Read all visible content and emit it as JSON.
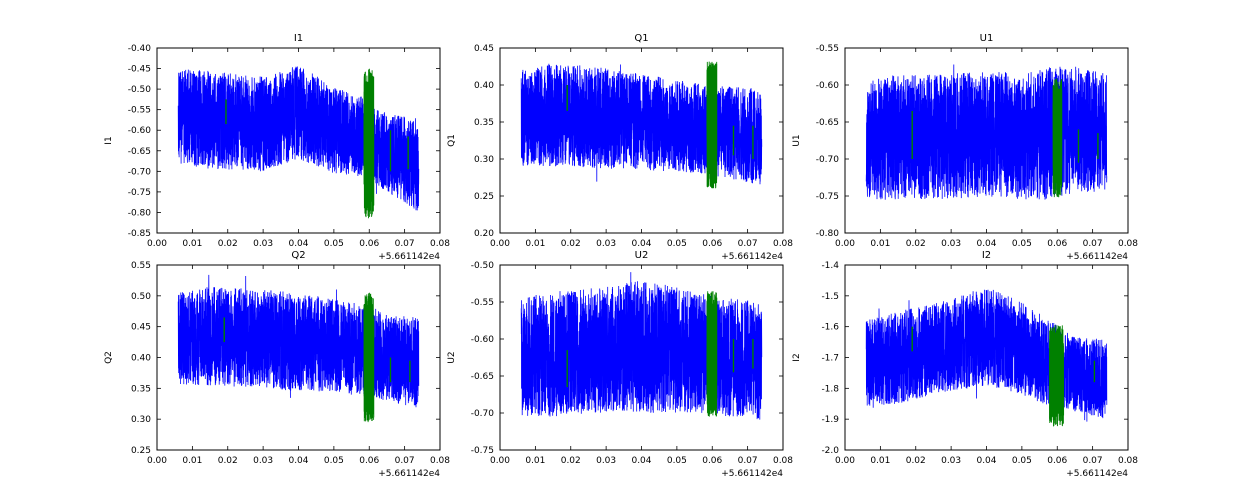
{
  "figure": {
    "background": "#ffffff",
    "axes_color": "#000000",
    "series_color": "#0000ff",
    "highlight_color": "#008000",
    "x_offset_label": "+5.661142e4",
    "xlim": [
      0.0,
      0.08
    ],
    "xtick_values": [
      0.0,
      0.01,
      0.02,
      0.03,
      0.04,
      0.05,
      0.06,
      0.07,
      0.08
    ],
    "xtick_labels": [
      "0.00",
      "0.01",
      "0.02",
      "0.03",
      "0.04",
      "0.05",
      "0.06",
      "0.07",
      "0.08"
    ],
    "grid": false,
    "legend": "none"
  },
  "chart_data": [
    {
      "type": "line",
      "title": "I1",
      "ylabel": "I1",
      "xlabel": "",
      "xlim": [
        0.0,
        0.08
      ],
      "ylim": [
        -0.85,
        -0.4
      ],
      "ytick_values": [
        -0.85,
        -0.8,
        -0.75,
        -0.7,
        -0.65,
        -0.6,
        -0.55,
        -0.5,
        -0.45,
        -0.4
      ],
      "ytick_labels": [
        "-0.85",
        "-0.80",
        "-0.75",
        "-0.70",
        "-0.65",
        "-0.60",
        "-0.55",
        "-0.50",
        "-0.45",
        "-0.40"
      ],
      "x_range": [
        0.006,
        0.074
      ],
      "envelope": {
        "x": [
          0.006,
          0.015,
          0.03,
          0.04,
          0.05,
          0.058,
          0.065,
          0.074
        ],
        "center": [
          -0.565,
          -0.575,
          -0.585,
          -0.555,
          -0.6,
          -0.615,
          -0.655,
          -0.685
        ],
        "half": [
          0.115,
          0.12,
          0.115,
          0.115,
          0.105,
          0.1,
          0.095,
          0.115
        ]
      },
      "highlight_main": {
        "x": [
          0.0585,
          0.0613
        ],
        "y": [
          -0.815,
          -0.45
        ]
      },
      "highlight_spikes": [
        [
          0.0195,
          -0.525,
          -0.585
        ],
        [
          0.066,
          -0.6,
          -0.7
        ],
        [
          0.071,
          -0.615,
          -0.695
        ]
      ]
    },
    {
      "type": "line",
      "title": "Q1",
      "ylabel": "Q1",
      "xlabel": "",
      "xlim": [
        0.0,
        0.08
      ],
      "ylim": [
        0.2,
        0.45
      ],
      "ytick_values": [
        0.2,
        0.25,
        0.3,
        0.35,
        0.4,
        0.45
      ],
      "ytick_labels": [
        "0.20",
        "0.25",
        "0.30",
        "0.35",
        "0.40",
        "0.45"
      ],
      "x_range": [
        0.006,
        0.074
      ],
      "envelope": {
        "x": [
          0.006,
          0.015,
          0.03,
          0.04,
          0.05,
          0.058,
          0.065,
          0.074
        ],
        "center": [
          0.355,
          0.36,
          0.355,
          0.35,
          0.345,
          0.34,
          0.335,
          0.33
        ],
        "half": [
          0.065,
          0.07,
          0.068,
          0.065,
          0.062,
          0.06,
          0.063,
          0.065
        ]
      },
      "highlight_main": {
        "x": [
          0.0585,
          0.0613
        ],
        "y": [
          0.26,
          0.432
        ]
      },
      "highlight_spikes": [
        [
          0.019,
          0.365,
          0.4
        ],
        [
          0.066,
          0.305,
          0.345
        ],
        [
          0.0715,
          0.3,
          0.345
        ]
      ]
    },
    {
      "type": "line",
      "title": "U1",
      "ylabel": "U1",
      "xlabel": "",
      "xlim": [
        0.0,
        0.08
      ],
      "ylim": [
        -0.8,
        -0.55
      ],
      "ytick_values": [
        -0.8,
        -0.75,
        -0.7,
        -0.65,
        -0.6,
        -0.55
      ],
      "ytick_labels": [
        "-0.80",
        "-0.75",
        "-0.70",
        "-0.65",
        "-0.60",
        "-0.55"
      ],
      "x_range": [
        0.006,
        0.074
      ],
      "envelope": {
        "x": [
          0.006,
          0.015,
          0.03,
          0.04,
          0.05,
          0.058,
          0.065,
          0.074
        ],
        "center": [
          -0.675,
          -0.67,
          -0.67,
          -0.665,
          -0.67,
          -0.665,
          -0.66,
          -0.665
        ],
        "half": [
          0.08,
          0.085,
          0.085,
          0.085,
          0.085,
          0.09,
          0.085,
          0.08
        ]
      },
      "highlight_main": {
        "x": [
          0.0588,
          0.0613
        ],
        "y": [
          -0.752,
          -0.59
        ]
      },
      "highlight_spikes": [
        [
          0.019,
          -0.635,
          -0.7
        ],
        [
          0.066,
          -0.66,
          -0.705
        ],
        [
          0.0715,
          -0.665,
          -0.7
        ]
      ]
    },
    {
      "type": "line",
      "title": "Q2",
      "ylabel": "Q2",
      "xlabel": "",
      "xlim": [
        0.0,
        0.08
      ],
      "ylim": [
        0.25,
        0.55
      ],
      "ytick_values": [
        0.25,
        0.3,
        0.35,
        0.4,
        0.45,
        0.5,
        0.55
      ],
      "ytick_labels": [
        "0.25",
        "0.30",
        "0.35",
        "0.40",
        "0.45",
        "0.50",
        "0.55"
      ],
      "x_range": [
        0.006,
        0.074
      ],
      "envelope": {
        "x": [
          0.006,
          0.015,
          0.03,
          0.04,
          0.05,
          0.058,
          0.065,
          0.074
        ],
        "center": [
          0.43,
          0.435,
          0.43,
          0.425,
          0.42,
          0.41,
          0.4,
          0.39
        ],
        "half": [
          0.075,
          0.08,
          0.08,
          0.08,
          0.075,
          0.075,
          0.07,
          0.075
        ]
      },
      "highlight_main": {
        "x": [
          0.0585,
          0.0613
        ],
        "y": [
          0.295,
          0.505
        ]
      },
      "highlight_spikes": [
        [
          0.019,
          0.425,
          0.465
        ],
        [
          0.066,
          0.36,
          0.4
        ],
        [
          0.0715,
          0.36,
          0.395
        ]
      ]
    },
    {
      "type": "line",
      "title": "U2",
      "ylabel": "U2",
      "xlabel": "",
      "xlim": [
        0.0,
        0.08
      ],
      "ylim": [
        -0.75,
        -0.5
      ],
      "ytick_values": [
        -0.75,
        -0.7,
        -0.65,
        -0.6,
        -0.55,
        -0.5
      ],
      "ytick_labels": [
        "-0.75",
        "-0.70",
        "-0.65",
        "-0.60",
        "-0.55",
        "-0.50"
      ],
      "x_range": [
        0.006,
        0.074
      ],
      "envelope": {
        "x": [
          0.006,
          0.015,
          0.03,
          0.04,
          0.05,
          0.058,
          0.065,
          0.074
        ],
        "center": [
          -0.625,
          -0.62,
          -0.615,
          -0.61,
          -0.615,
          -0.62,
          -0.625,
          -0.63
        ],
        "half": [
          0.08,
          0.085,
          0.085,
          0.09,
          0.085,
          0.08,
          0.08,
          0.08
        ]
      },
      "highlight_main": {
        "x": [
          0.0585,
          0.0613
        ],
        "y": [
          -0.705,
          -0.535
        ]
      },
      "highlight_spikes": [
        [
          0.019,
          -0.615,
          -0.665
        ],
        [
          0.066,
          -0.6,
          -0.645
        ],
        [
          0.0715,
          -0.6,
          -0.64
        ]
      ]
    },
    {
      "type": "line",
      "title": "I2",
      "ylabel": "I2",
      "xlabel": "",
      "xlim": [
        0.0,
        0.08
      ],
      "ylim": [
        -2.0,
        -1.4
      ],
      "ytick_values": [
        -2.0,
        -1.9,
        -1.8,
        -1.7,
        -1.6,
        -1.5,
        -1.4
      ],
      "ytick_labels": [
        "-2.0",
        "-1.9",
        "-1.8",
        "-1.7",
        "-1.6",
        "-1.5",
        "-1.4"
      ],
      "x_range": [
        0.006,
        0.074
      ],
      "envelope": {
        "x": [
          0.006,
          0.015,
          0.03,
          0.04,
          0.05,
          0.058,
          0.065,
          0.074
        ],
        "center": [
          -1.72,
          -1.7,
          -1.66,
          -1.63,
          -1.67,
          -1.72,
          -1.755,
          -1.77
        ],
        "half": [
          0.14,
          0.15,
          0.15,
          0.16,
          0.15,
          0.14,
          0.12,
          0.13
        ]
      },
      "highlight_main": {
        "x": [
          0.0578,
          0.0618
        ],
        "y": [
          -1.925,
          -1.595
        ]
      },
      "highlight_spikes": [
        [
          0.019,
          -1.6,
          -1.68
        ],
        [
          0.0705,
          -1.71,
          -1.78
        ]
      ]
    }
  ]
}
